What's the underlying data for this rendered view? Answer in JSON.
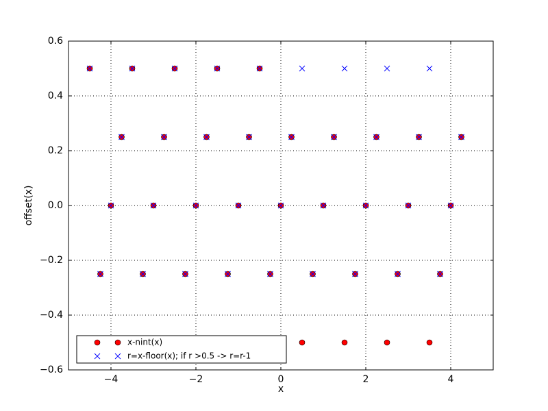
{
  "chart_data": {
    "type": "scatter",
    "x": [
      -4.5,
      -4.25,
      -4,
      -3.75,
      -3.5,
      -3.25,
      -3,
      -2.75,
      -2.5,
      -2.25,
      -2,
      -1.75,
      -1.5,
      -1.25,
      -1,
      -0.75,
      -0.5,
      -0.25,
      0,
      0.25,
      0.5,
      0.75,
      1,
      1.25,
      1.5,
      1.75,
      2,
      2.25,
      2.5,
      2.75,
      3,
      3.25,
      3.5,
      3.75,
      4,
      4.25
    ],
    "series": [
      {
        "name": "x-nint(x)",
        "color": "#ff0000",
        "marker": "circle",
        "values": [
          0.5,
          -0.25,
          0,
          0.25,
          0.5,
          -0.25,
          0,
          0.25,
          0.5,
          -0.25,
          0,
          0.25,
          0.5,
          -0.25,
          0,
          0.25,
          0.5,
          -0.25,
          0,
          0.25,
          -0.5,
          -0.25,
          0,
          0.25,
          -0.5,
          -0.25,
          0,
          0.25,
          -0.5,
          -0.25,
          0,
          0.25,
          -0.5,
          -0.25,
          0,
          0.25
        ]
      },
      {
        "name": "r=x-floor(x); if r >0.5 -> r=r-1",
        "color": "#0000ff",
        "marker": "x",
        "values": [
          0.5,
          -0.25,
          0,
          0.25,
          0.5,
          -0.25,
          0,
          0.25,
          0.5,
          -0.25,
          0,
          0.25,
          0.5,
          -0.25,
          0,
          0.25,
          0.5,
          -0.25,
          0,
          0.25,
          0.5,
          -0.25,
          0,
          0.25,
          0.5,
          -0.25,
          0,
          0.25,
          0.5,
          -0.25,
          0,
          0.25,
          0.5,
          -0.25,
          0,
          0.25
        ]
      }
    ],
    "x_label": "x",
    "y_label": "offset(x)",
    "xlim": [
      -5,
      5
    ],
    "xticks": [
      {
        "value": -4,
        "label": "−4"
      },
      {
        "value": -2,
        "label": "−2"
      },
      0,
      2,
      4
    ],
    "ylim": [
      -0.6,
      0.6
    ],
    "yticks": [
      {
        "value": -0.6,
        "label": "−0.6"
      },
      {
        "value": -0.4,
        "label": "−0.4"
      },
      {
        "value": -0.2,
        "label": "−0.2"
      },
      {
        "value": 0,
        "label": "0.0"
      },
      0.2,
      0.4,
      0.6
    ],
    "grid": true,
    "legend": "lower left"
  }
}
